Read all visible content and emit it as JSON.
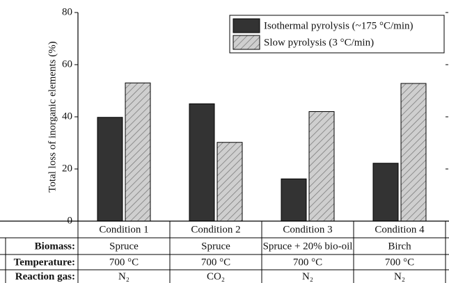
{
  "chart_data": {
    "type": "bar",
    "y_label": "Total loss of inorganic elements (%)",
    "categories": [
      "Condition 1",
      "Condition 2",
      "Condition 3",
      "Condition 4"
    ],
    "series": [
      {
        "name": "Isothermal pyrolysis (~175 °C/min)",
        "color": "#333333",
        "hatch": false,
        "values": [
          39.8,
          45,
          16.2,
          22.2
        ]
      },
      {
        "name": "Slow pyrolysis (3 °C/min)",
        "color": "#c8c8c8",
        "hatch": true,
        "values": [
          53,
          30.2,
          42,
          52.8
        ]
      }
    ],
    "ylim": [
      0,
      80
    ],
    "yticks": [
      0,
      20,
      40,
      60,
      80
    ],
    "legend": "upper right"
  },
  "table": {
    "rows": [
      {
        "label": "Biomass:",
        "cells": [
          "Spruce",
          "Spruce",
          "Spruce + 20% bio-oil",
          "Birch"
        ]
      },
      {
        "label": "Temperature:",
        "cells": [
          "700 °C",
          "700 °C",
          "700 °C",
          "700 °C"
        ]
      },
      {
        "label": "Reaction gas:",
        "cells": [
          "N₂",
          "CO₂",
          "N₂",
          "N₂"
        ]
      }
    ]
  }
}
